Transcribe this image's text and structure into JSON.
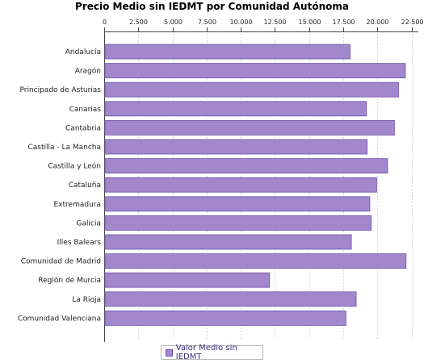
{
  "chart_data": {
    "type": "bar",
    "orientation": "horizontal",
    "title": "Precio Medio sin IEDMT por Comunidad Autónoma",
    "categories": [
      "Andalucía",
      "Aragón",
      "Principado de Asturias",
      "Canarias",
      "Cantabria",
      "Castilla - La Mancha",
      "Castilla y León",
      "Cataluña",
      "Extremadura",
      "Galicia",
      "Illes Balears",
      "Comunidad de Madrid",
      "Región de Murcia",
      "La Rioja",
      "Comunidad Valenciana"
    ],
    "series": [
      {
        "name": "Valor Medio sin IEDMT",
        "values": [
          18000,
          22050,
          21550,
          19200,
          21250,
          19250,
          20750,
          19950,
          19450,
          19550,
          18100,
          22100,
          12100,
          18450,
          17700
        ]
      }
    ],
    "xlim": [
      0,
      23000
    ],
    "x_ticks": [
      "0",
      "2.500",
      "5.000",
      "7.500",
      "10.000",
      "12.500",
      "15.000",
      "17.500",
      "20.000",
      "22.500"
    ],
    "x_tick_values": [
      0,
      2500,
      5000,
      7500,
      10000,
      12500,
      15000,
      17500,
      20000,
      22500
    ],
    "grid": true,
    "legend_position": "bottom",
    "bar_color": "#a387cc",
    "bar_edge_color": "#6b52a8"
  }
}
